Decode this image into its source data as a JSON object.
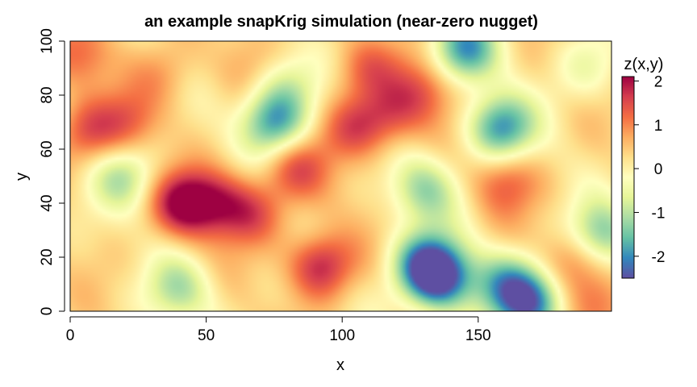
{
  "chart_data": {
    "type": "heatmap",
    "title": "an example snapKrig simulation (near-zero nugget)",
    "xlabel": "x",
    "ylabel": "y",
    "xlim": [
      0,
      199
    ],
    "ylim": [
      0,
      100
    ],
    "x_ticks": [
      0,
      50,
      100,
      150
    ],
    "y_ticks": [
      0,
      20,
      40,
      60,
      80,
      100
    ],
    "grid": false,
    "legend": {
      "title": "z(x,y)",
      "placement": "right",
      "zlim": [
        -2.5,
        2.1
      ],
      "ticks": [
        -2,
        -1,
        0,
        1,
        2
      ],
      "colors": [
        "#5E4FA2",
        "#3288BD",
        "#66C2A5",
        "#ABDDA4",
        "#E6F598",
        "#FFFFBF",
        "#FEE08B",
        "#FDAE61",
        "#F46D43",
        "#D53E4F",
        "#9E0142"
      ]
    },
    "features": [
      {
        "x": 42,
        "y": 40,
        "z": 2.0
      },
      {
        "x": 55,
        "y": 40,
        "z": 1.4
      },
      {
        "x": 67,
        "y": 36,
        "z": 1.2
      },
      {
        "x": 92,
        "y": 17,
        "z": 1.9
      },
      {
        "x": 136,
        "y": 12,
        "z": -2.4
      },
      {
        "x": 130,
        "y": 18,
        "z": -1.6
      },
      {
        "x": 170,
        "y": 3,
        "z": -2.0
      },
      {
        "x": 160,
        "y": 10,
        "z": -1.3
      },
      {
        "x": 5,
        "y": 66,
        "z": 1.3
      },
      {
        "x": 22,
        "y": 70,
        "z": 1.1
      },
      {
        "x": 4,
        "y": 95,
        "z": 1.1
      },
      {
        "x": 105,
        "y": 68,
        "z": 1.3
      },
      {
        "x": 118,
        "y": 72,
        "z": 1.2
      },
      {
        "x": 130,
        "y": 82,
        "z": 1.2
      },
      {
        "x": 108,
        "y": 90,
        "z": 1.2
      },
      {
        "x": 83,
        "y": 53,
        "z": 1.3
      },
      {
        "x": 160,
        "y": 48,
        "z": 1.2
      },
      {
        "x": 185,
        "y": 20,
        "z": 1.1
      },
      {
        "x": 196,
        "y": 2,
        "z": 1.0
      },
      {
        "x": 75,
        "y": 70,
        "z": -1.9
      },
      {
        "x": 158,
        "y": 68,
        "z": -2.0
      },
      {
        "x": 145,
        "y": 97,
        "z": -1.8
      },
      {
        "x": 80,
        "y": 85,
        "z": -0.7
      },
      {
        "x": 130,
        "y": 45,
        "z": -1.2
      },
      {
        "x": 20,
        "y": 50,
        "z": -1.0
      },
      {
        "x": 40,
        "y": 8,
        "z": -1.0
      },
      {
        "x": 195,
        "y": 28,
        "z": -1.5
      },
      {
        "x": 190,
        "y": 90,
        "z": -0.5
      },
      {
        "x": 100,
        "y": 40,
        "z": 0.3
      },
      {
        "x": 65,
        "y": 92,
        "z": 0.6
      },
      {
        "x": 35,
        "y": 88,
        "z": 0.8
      }
    ]
  }
}
